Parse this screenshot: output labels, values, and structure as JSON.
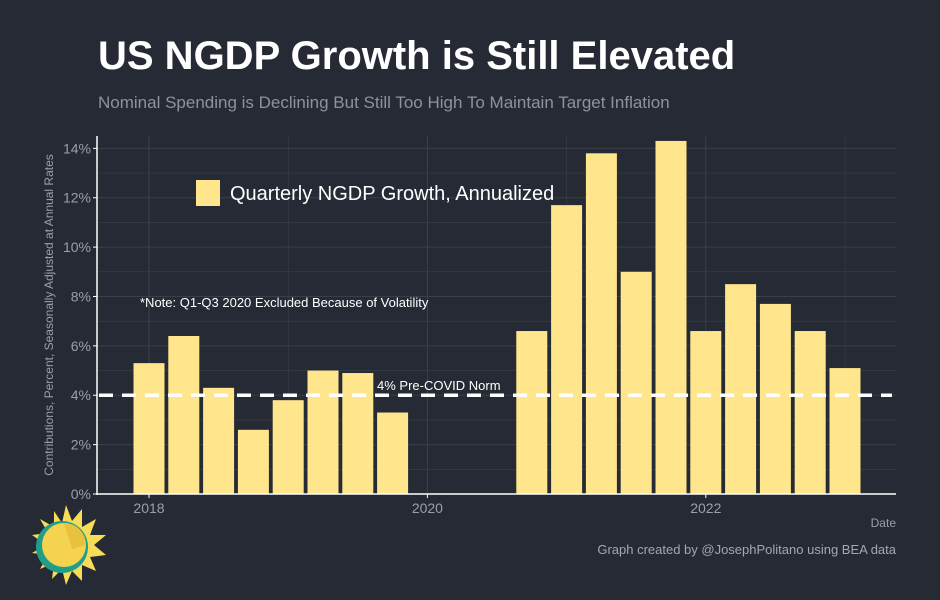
{
  "header": {
    "title": "US NGDP Growth is Still Elevated",
    "subtitle": "Nominal Spending is Declining But Still Too High To Maintain Target Inflation"
  },
  "footer": {
    "caption": "Graph created by @JosephPolitano using BEA data"
  },
  "colors": {
    "background": "#252a34",
    "bar": "#ffe68c",
    "grid": "#3a404b",
    "axis_text": "#9aa0a8",
    "reference_line": "#ffffff"
  },
  "icons": {
    "logo": "sun-icon"
  },
  "chart_data": {
    "type": "bar",
    "xlabel": "Date",
    "ylabel": "Contributions, Percent, Seasonally Adjusted at Annual Rates",
    "x_ticks": [
      "2018",
      "2020",
      "2022"
    ],
    "y_ticks": [
      "0%",
      "2%",
      "4%",
      "6%",
      "8%",
      "10%",
      "12%",
      "14%"
    ],
    "ylim": [
      0,
      14.5
    ],
    "grid": true,
    "legend_position": "top-left",
    "series": [
      {
        "name": "Quarterly NGDP Growth, Annualized",
        "categories": [
          "2018 Q1",
          "2018 Q2",
          "2018 Q3",
          "2018 Q4",
          "2019 Q1",
          "2019 Q2",
          "2019 Q3",
          "2019 Q4",
          "2020 Q4",
          "2021 Q1",
          "2021 Q2",
          "2021 Q3",
          "2021 Q4",
          "2022 Q1",
          "2022 Q2",
          "2022 Q3",
          "2022 Q4",
          "2023 Q1"
        ],
        "values": [
          5.3,
          6.4,
          4.3,
          2.6,
          3.8,
          5.0,
          4.9,
          3.3,
          6.6,
          11.7,
          13.8,
          9.0,
          14.3,
          6.6,
          8.5,
          7.7,
          6.6,
          5.1
        ]
      }
    ],
    "reference_line": {
      "value": 4,
      "label": "4% Pre-COVID Norm"
    },
    "annotations": [
      "*Note: Q1-Q3 2020 Excluded Because of Volatility"
    ]
  }
}
